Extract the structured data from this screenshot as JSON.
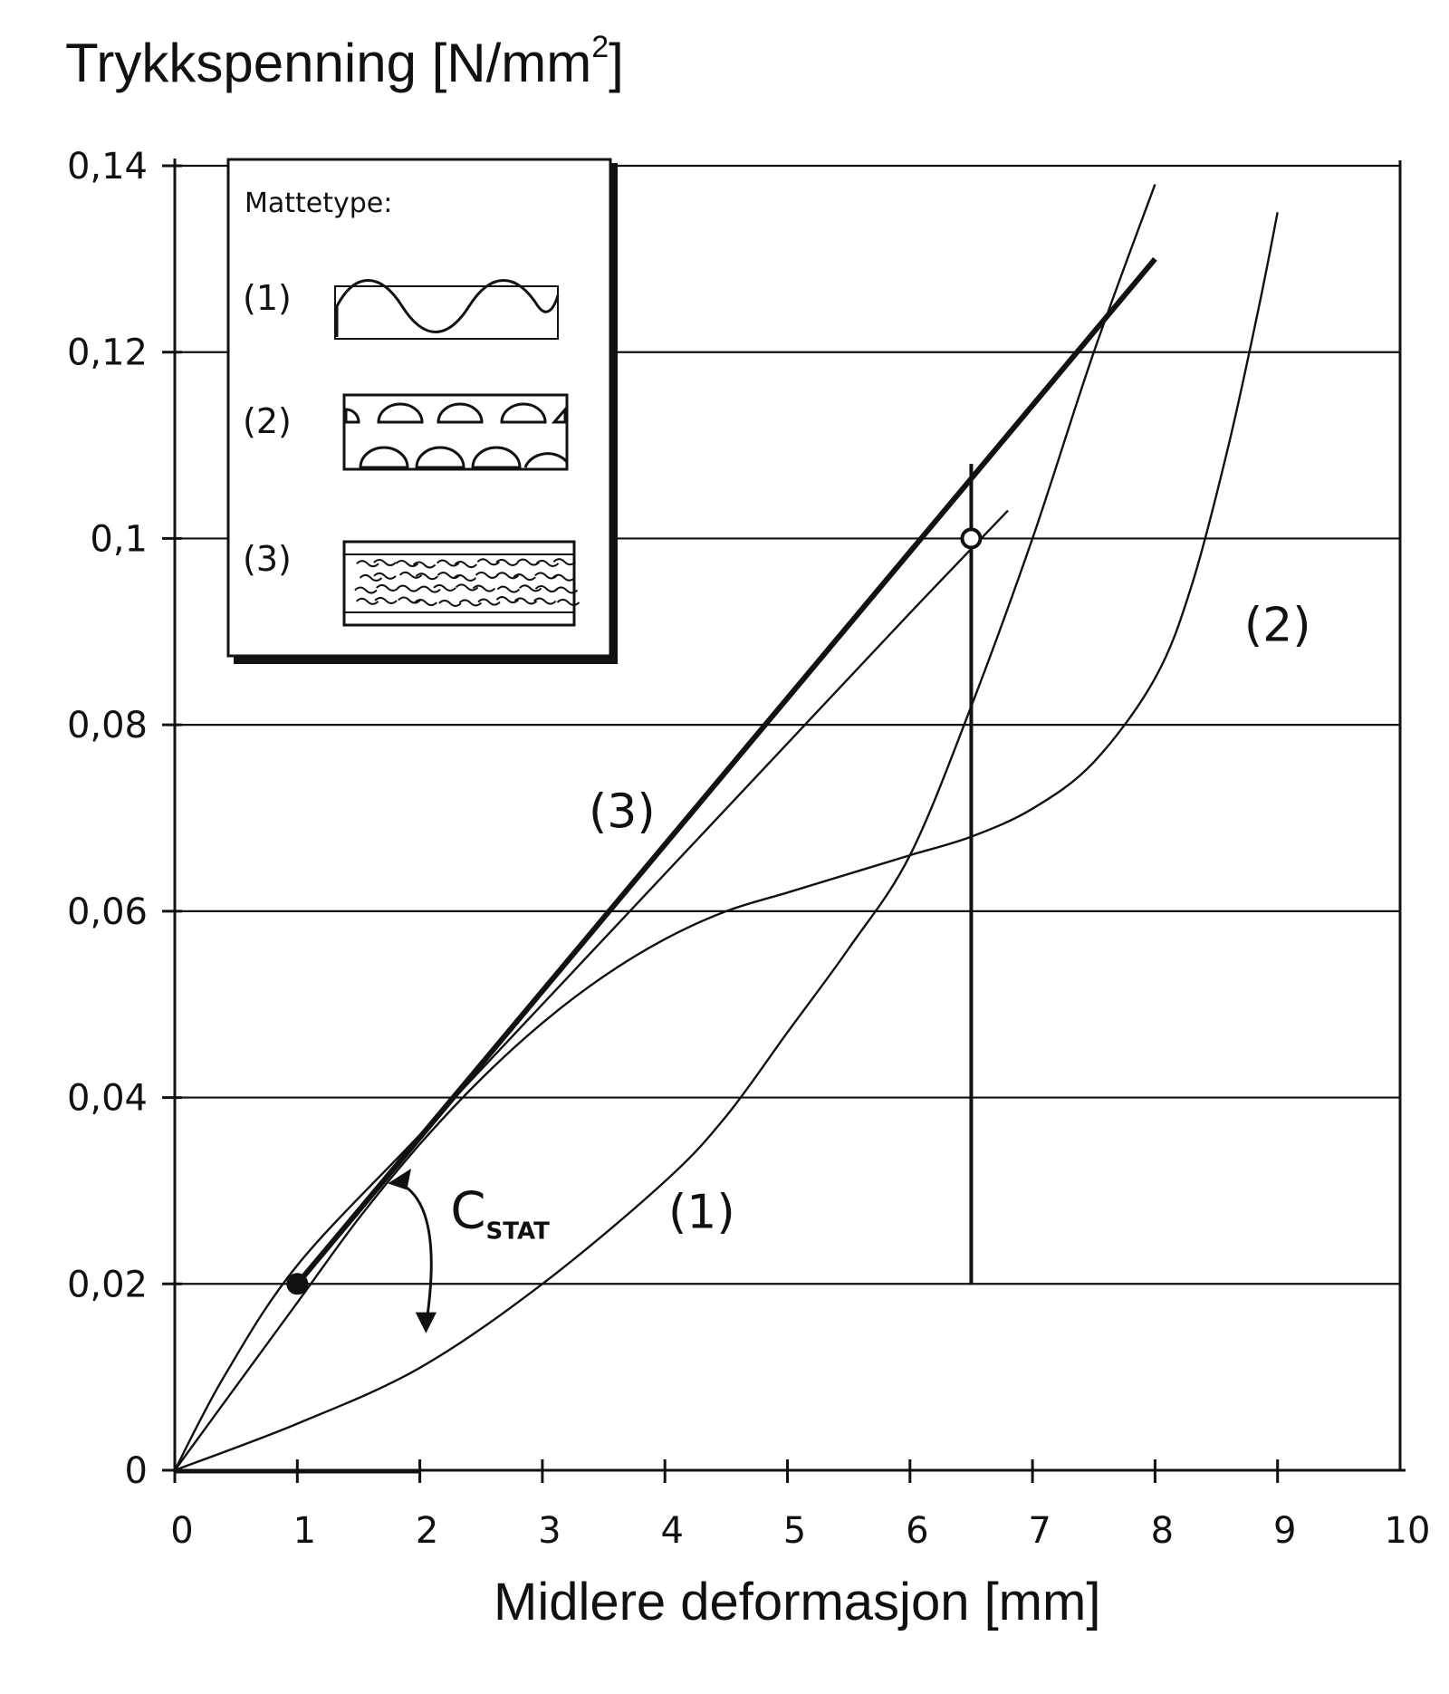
{
  "chart_data": {
    "type": "line",
    "title": "",
    "ylabel_main": "Trykkspenning [N/mm",
    "ylabel_sup": "2",
    "ylabel_tail": "]",
    "xlabel": "Midlere deformasjon [mm]",
    "xlim": [
      0,
      10
    ],
    "ylim": [
      0,
      0.14
    ],
    "x_ticks": [
      0,
      1,
      2,
      3,
      4,
      5,
      6,
      7,
      8,
      9,
      10
    ],
    "x_tick_labels": [
      "0",
      "1",
      "2",
      "3",
      "4",
      "5",
      "6",
      "7",
      "8",
      "9",
      "10"
    ],
    "y_ticks": [
      0,
      0.02,
      0.04,
      0.06,
      0.08,
      0.1,
      0.12,
      0.14
    ],
    "y_tick_labels": [
      "0",
      "0,02",
      "0,04",
      "0,06",
      "0,08",
      "0,1",
      "0,12",
      "0,14"
    ],
    "grid": true,
    "series": [
      {
        "name": "(1)",
        "label_at": [
          4.3,
          0.026
        ],
        "points": [
          [
            0,
            0
          ],
          [
            1,
            0.005
          ],
          [
            2,
            0.011
          ],
          [
            3,
            0.02
          ],
          [
            4,
            0.031
          ],
          [
            4.5,
            0.038
          ],
          [
            5,
            0.047
          ],
          [
            5.5,
            0.056
          ],
          [
            6,
            0.066
          ],
          [
            6.5,
            0.082
          ],
          [
            7,
            0.1
          ],
          [
            7.5,
            0.12
          ],
          [
            8,
            0.138
          ]
        ]
      },
      {
        "name": "(2)",
        "label_at": [
          9.0,
          0.089
        ],
        "points": [
          [
            0,
            0
          ],
          [
            0.5,
            0.009
          ],
          [
            1,
            0.018
          ],
          [
            1.5,
            0.027
          ],
          [
            2,
            0.035
          ],
          [
            2.5,
            0.042
          ],
          [
            3,
            0.048
          ],
          [
            3.5,
            0.053
          ],
          [
            4,
            0.057
          ],
          [
            4.5,
            0.06
          ],
          [
            5,
            0.062
          ],
          [
            5.5,
            0.064
          ],
          [
            6,
            0.066
          ],
          [
            6.5,
            0.068
          ],
          [
            7,
            0.071
          ],
          [
            7.5,
            0.076
          ],
          [
            8,
            0.085
          ],
          [
            8.3,
            0.095
          ],
          [
            8.6,
            0.11
          ],
          [
            8.85,
            0.125
          ],
          [
            9,
            0.135
          ]
        ]
      },
      {
        "name": "(3)",
        "label_at": [
          3.65,
          0.069
        ],
        "points": [
          [
            0,
            0
          ],
          [
            0.4,
            0.01
          ],
          [
            1,
            0.022
          ],
          [
            2,
            0.036
          ],
          [
            3,
            0.05
          ],
          [
            4,
            0.064
          ],
          [
            5,
            0.078
          ],
          [
            6,
            0.092
          ],
          [
            6.8,
            0.103
          ]
        ]
      }
    ],
    "cstat_line": {
      "label": "C",
      "label_sub": "STAT",
      "label_at": [
        2.25,
        0.026
      ],
      "points": [
        [
          1.0,
          0.02
        ],
        [
          8.0,
          0.13
        ]
      ],
      "markers": [
        [
          1.0,
          0.02
        ],
        [
          6.5,
          0.1
        ]
      ]
    },
    "reference_line": {
      "x": 6.5,
      "y_from": 0.02,
      "y_to": 0.108
    },
    "legend": {
      "title": "Mattetype:",
      "entries": [
        "(1)",
        "(2)",
        "(3)"
      ],
      "position": "top-left"
    }
  }
}
